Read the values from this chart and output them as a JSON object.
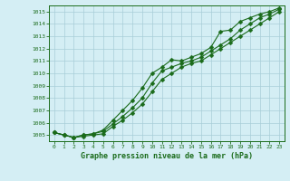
{
  "xlabel": "Graphe pression niveau de la mer (hPa)",
  "x": [
    0,
    1,
    2,
    3,
    4,
    5,
    6,
    7,
    8,
    9,
    10,
    11,
    12,
    13,
    14,
    15,
    16,
    17,
    18,
    19,
    20,
    21,
    22,
    23
  ],
  "line1": [
    1005.2,
    1005.0,
    1004.8,
    1005.0,
    1005.1,
    1005.4,
    1006.2,
    1007.0,
    1007.8,
    1008.8,
    1010.0,
    1010.5,
    1011.1,
    1011.0,
    1011.3,
    1011.6,
    1012.1,
    1013.4,
    1013.5,
    1014.2,
    1014.5,
    1014.8,
    1015.0,
    1015.3
  ],
  "line2": [
    1005.2,
    1005.0,
    1004.8,
    1005.0,
    1005.1,
    1005.3,
    1005.9,
    1006.5,
    1007.2,
    1008.0,
    1009.2,
    1010.2,
    1010.5,
    1010.8,
    1011.0,
    1011.3,
    1011.8,
    1012.3,
    1012.8,
    1013.5,
    1014.0,
    1014.5,
    1014.8,
    1015.2
  ],
  "line3": [
    1005.2,
    1005.0,
    1004.8,
    1004.9,
    1005.0,
    1005.1,
    1005.7,
    1006.2,
    1006.8,
    1007.5,
    1008.5,
    1009.5,
    1010.0,
    1010.5,
    1010.8,
    1011.0,
    1011.5,
    1012.0,
    1012.5,
    1013.0,
    1013.5,
    1014.0,
    1014.5,
    1015.0
  ],
  "ylim_min": 1004.5,
  "ylim_max": 1015.5,
  "yticks": [
    1005,
    1006,
    1007,
    1008,
    1009,
    1010,
    1011,
    1012,
    1013,
    1014,
    1015
  ],
  "line_color": "#1a6b1a",
  "bg_color": "#d4eef4",
  "grid_color": "#a8cdd8",
  "tick_color": "#1a6b1a",
  "markersize": 2.5,
  "linewidth": 0.8
}
